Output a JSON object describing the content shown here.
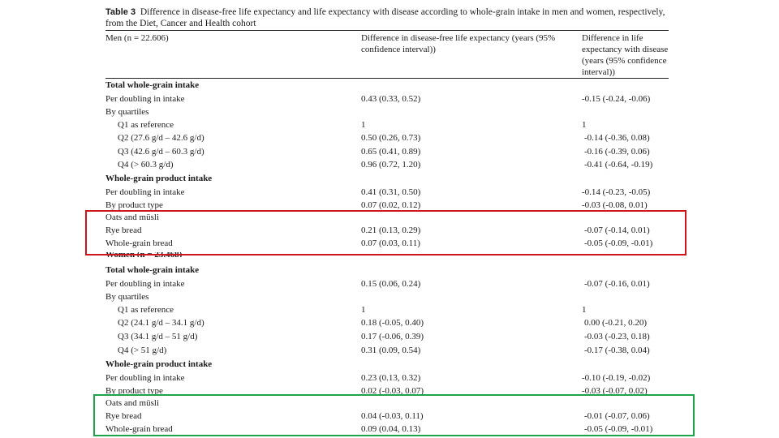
{
  "caption": {
    "table_number": "Table 3",
    "text": "Difference in disease-free life expectancy and life expectancy with disease according to whole-grain intake in men and women, respectively, from the Diet, Cancer and Health cohort"
  },
  "header": {
    "col1": "Men (n = 22.606)",
    "col2": "Difference in disease-free life expectancy (years (95% confidence interval))",
    "col3": "Difference in life expectancy with disease (years (95% confidence interval))"
  },
  "men": {
    "total_heading": "Total whole-grain intake",
    "rows_total": [
      {
        "label": "Per doubling in intake",
        "a": "0.43 (0.33, 0.52)",
        "b": "-0.15 (-0.24, -0.06)"
      },
      {
        "label": "By quartiles",
        "a": "",
        "b": ""
      },
      {
        "label": "Q1 as reference",
        "a": "1",
        "b": "1"
      },
      {
        "label": "Q2 (27.6 g/d – 42.6 g/d)",
        "a": "0.50 (0.26, 0.73)",
        "b": "-0.14 (-0.36, 0.08)"
      },
      {
        "label": "Q3 (42.6 g/d – 60.3 g/d)",
        "a": "0.65 (0.41, 0.89)",
        "b": "-0.16 (-0.39, 0.06)"
      },
      {
        "label": "Q4 (> 60.3 g/d)",
        "a": "0.96 (0.72, 1.20)",
        "b": "-0.41 (-0.64, -0.19)"
      }
    ],
    "product_heading": "Whole-grain product intake",
    "rows_product": [
      {
        "label": "Per doubling in intake",
        "a": "0.41 (0.31, 0.50)",
        "b": "-0.14 (-0.23, -0.05)"
      },
      {
        "label": "By product type",
        "a": "0.07 (0.02, 0.12)",
        "b": "-0.03 (-0.08, 0.01)"
      },
      {
        "label": "Oats and müsli",
        "a": "",
        "b": ""
      },
      {
        "label": "Rye bread",
        "a": "0.21 (0.13, 0.29)",
        "b": "-0.07 (-0.14, 0.01)"
      },
      {
        "label": "Whole-grain bread",
        "a": "0.07 (0.03, 0.11)",
        "b": "-0.05 (-0.09, -0.01)"
      }
    ]
  },
  "women": {
    "group_label": "Women (n = 23.468)",
    "total_heading": "Total whole-grain intake",
    "rows_total": [
      {
        "label": "Per doubling in intake",
        "a": "0.15 (0.06, 0.24)",
        "b": "-0.07 (-0.16, 0.01)"
      },
      {
        "label": "By quartiles",
        "a": "",
        "b": ""
      },
      {
        "label": "Q1 as reference",
        "a": "1",
        "b": "1"
      },
      {
        "label": "Q2 (24.1 g/d – 34.1 g/d)",
        "a": "0.18 (-0.05, 0.40)",
        "b": "0.00 (-0.21, 0.20)"
      },
      {
        "label": "Q3 (34.1 g/d – 51 g/d)",
        "a": "0.17 (-0.06, 0.39)",
        "b": "-0.03 (-0.23, 0.18)"
      },
      {
        "label": "Q4 (> 51 g/d)",
        "a": "0.31 (0.09, 0.54)",
        "b": "-0.17 (-0.38, 0.04)"
      }
    ],
    "product_heading": "Whole-grain product intake",
    "rows_product": [
      {
        "label": "Per doubling in intake",
        "a": "0.23 (0.13, 0.32)",
        "b": "-0.10 (-0.19, -0.02)"
      },
      {
        "label": "By product type",
        "a": "0.02 (-0.03, 0.07)",
        "b": "-0.03 (-0.07, 0.02)"
      },
      {
        "label": "Oats and müsli",
        "a": "",
        "b": ""
      },
      {
        "label": "Rye bread",
        "a": "0.04 (-0.03, 0.11)",
        "b": "-0.01 (-0.07, 0.06)"
      },
      {
        "label": "Whole-grain bread",
        "a": "0.09 (0.04, 0.13)",
        "b": "-0.05 (-0.09, -0.01)"
      }
    ]
  },
  "highlights": {
    "men_color": "#d0141b",
    "women_color": "#1fa34a"
  }
}
